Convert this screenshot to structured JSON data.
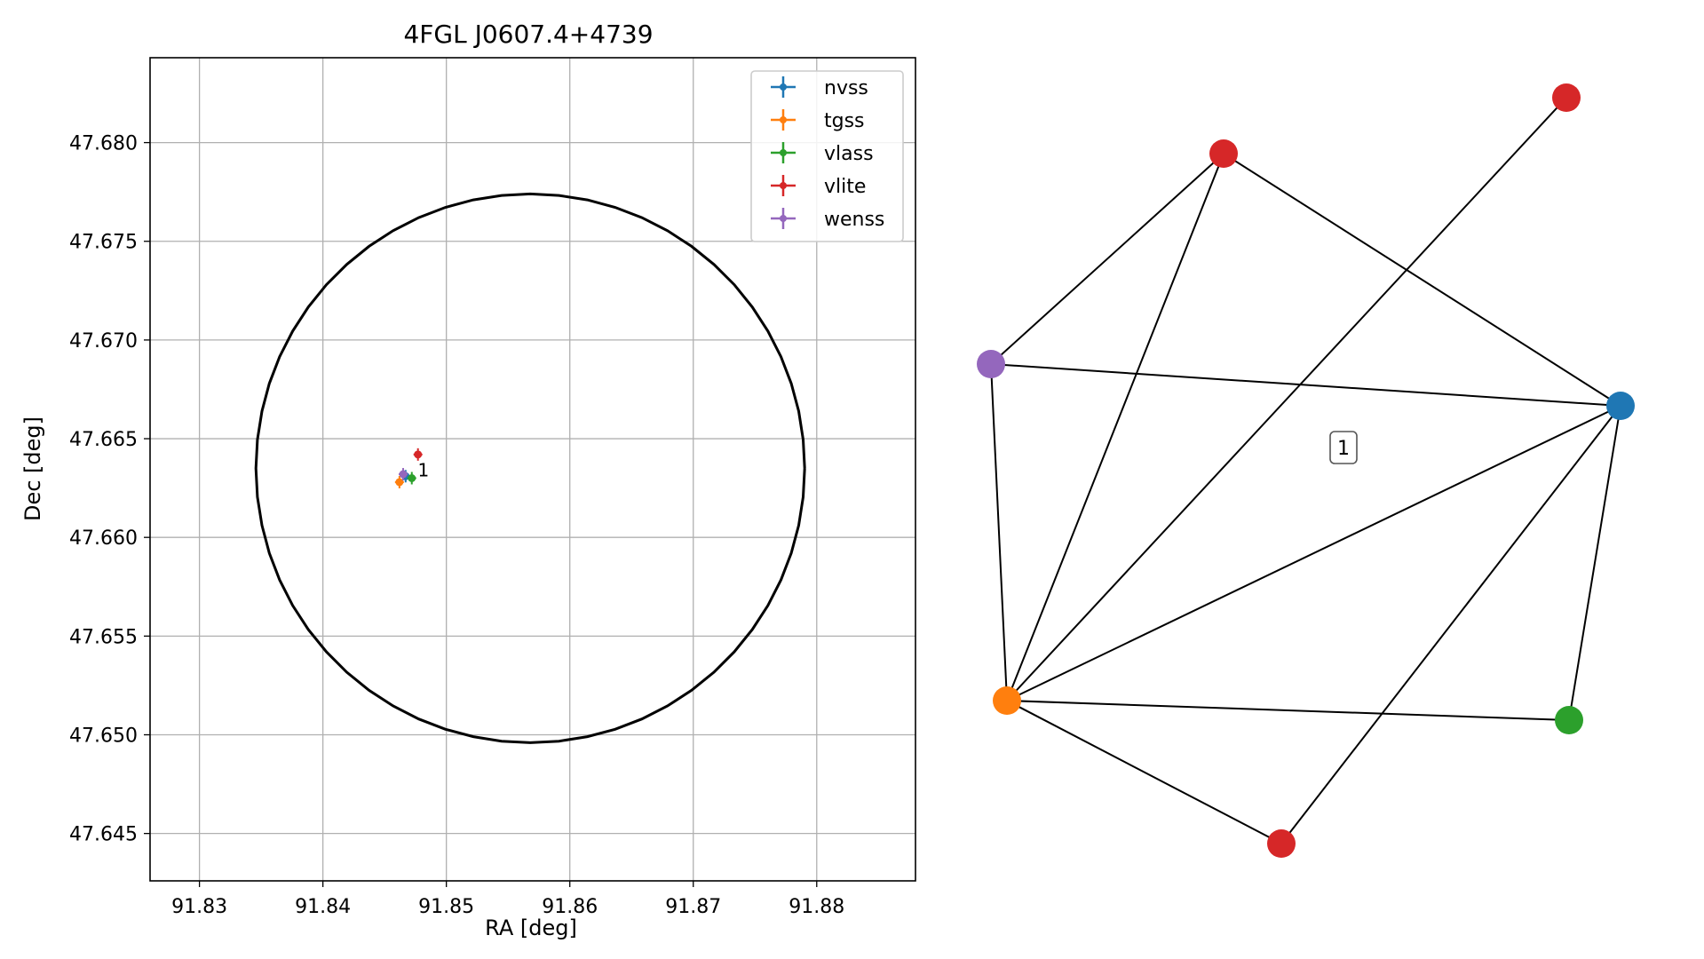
{
  "chart_data": [
    {
      "type": "scatter",
      "title": "4FGL J0607.4+4739",
      "xlabel": "RA [deg]",
      "ylabel": "Dec [deg]",
      "xlim": [
        91.826,
        91.888
      ],
      "ylim": [
        47.6426,
        47.6843
      ],
      "xticks": [
        "91.83",
        "91.84",
        "91.85",
        "91.86",
        "91.87",
        "91.88"
      ],
      "yticks": [
        "47.645",
        "47.650",
        "47.655",
        "47.660",
        "47.665",
        "47.670",
        "47.675",
        "47.680"
      ],
      "grid": true,
      "legend_position": "top-right",
      "circle": {
        "center_ra": 91.8568,
        "center_dec": 47.6635,
        "radius_dec": 0.0139
      },
      "series": [
        {
          "name": "nvss",
          "color": "#1f77b4",
          "points": [
            [
              91.8467,
              47.6631
            ]
          ]
        },
        {
          "name": "tgss",
          "color": "#ff7f0e",
          "points": [
            [
              91.8462,
              47.6628
            ]
          ]
        },
        {
          "name": "vlass",
          "color": "#2ca02c",
          "points": [
            [
              91.8472,
              47.663
            ]
          ]
        },
        {
          "name": "vlite",
          "color": "#d62728",
          "points": [
            [
              91.8477,
              47.6642
            ]
          ]
        },
        {
          "name": "wenss",
          "color": "#9467bd",
          "points": [
            [
              91.8465,
              47.6632
            ]
          ]
        }
      ],
      "annotations": [
        {
          "text": "1",
          "ra": 91.848,
          "dec": 47.6638
        }
      ]
    },
    {
      "type": "network",
      "nodes": [
        {
          "id": "v1",
          "color": "#d62728"
        },
        {
          "id": "v2",
          "color": "#d62728"
        },
        {
          "id": "w",
          "color": "#9467bd"
        },
        {
          "id": "n",
          "color": "#1f77b4"
        },
        {
          "id": "t",
          "color": "#ff7f0e"
        },
        {
          "id": "g",
          "color": "#2ca02c"
        },
        {
          "id": "v3",
          "color": "#d62728"
        }
      ],
      "edges": [
        [
          "v1",
          "w"
        ],
        [
          "v1",
          "t"
        ],
        [
          "v1",
          "n"
        ],
        [
          "v2",
          "t"
        ],
        [
          "w",
          "n"
        ],
        [
          "w",
          "t"
        ],
        [
          "n",
          "t"
        ],
        [
          "n",
          "g"
        ],
        [
          "n",
          "v3"
        ],
        [
          "t",
          "g"
        ],
        [
          "t",
          "v3"
        ]
      ],
      "label": "1"
    }
  ]
}
